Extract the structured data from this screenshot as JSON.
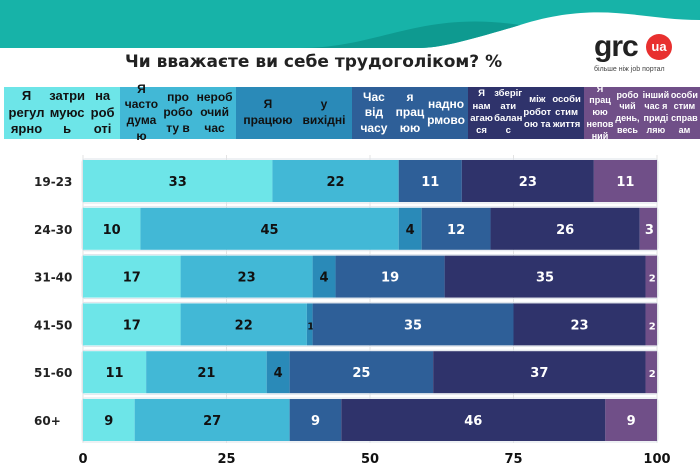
{
  "title": "Чи вважаєте ви себе трудоголіком? %",
  "logo": {
    "text": "grc",
    "badge": "ua",
    "tagline": "більше ніж job портал"
  },
  "colors": {
    "wave_light": "#17b3a8",
    "wave_dark": "#0e9a90",
    "text_dark": "#111111",
    "text_light": "#ffffff"
  },
  "chart_data": {
    "type": "bar",
    "orientation": "horizontal",
    "stacked": true,
    "title": "Чи вважаєте ви себе трудоголіком? %",
    "categories": [
      "19-23",
      "24-30",
      "31-40",
      "41-50",
      "51-60",
      "60+"
    ],
    "xlim": [
      0,
      100
    ],
    "xticks": [
      "0",
      "25",
      "50",
      "75",
      "100"
    ],
    "grid": true,
    "legend": "top",
    "series": [
      {
        "name": "Я регулярно затримуюсь на роботі",
        "color": "#6de5e8",
        "text_color": "#111111",
        "values": [
          33,
          10,
          17,
          17,
          11,
          9
        ]
      },
      {
        "name": "Я часто думаю про роботу в неробочий час",
        "color": "#42b8d6",
        "text_color": "#111111",
        "values": [
          22,
          45,
          23,
          22,
          21,
          27
        ]
      },
      {
        "name": "Я працюю у вихідні",
        "color": "#2a8ab8",
        "text_color": "#111111",
        "values": [
          0,
          4,
          4,
          1,
          4,
          0
        ]
      },
      {
        "name": "Час від часу я працюю наднормово",
        "color": "#2e5f98",
        "text_color": "#ffffff",
        "values": [
          11,
          12,
          19,
          35,
          25,
          9
        ]
      },
      {
        "name": "Я намагаюся зберігати баланс між роботою та особистим життя",
        "color": "#2f336b",
        "text_color": "#ffffff",
        "values": [
          23,
          26,
          35,
          23,
          37,
          46
        ]
      },
      {
        "name": "Я працюю неповний робочий день, весь інший час я приділяю особистим справам",
        "color": "#704f88",
        "text_color": "#ffffff",
        "values": [
          11,
          3,
          2,
          2,
          2,
          9
        ]
      }
    ]
  },
  "legend_lines": [
    [
      "Я регулярно",
      "затримуюсь",
      "на роботі"
    ],
    [
      "Я часто думаю",
      "про роботу в",
      "неробочий час"
    ],
    [
      "Я працюю",
      "у вихідні"
    ],
    [
      "Час від часу",
      "я працюю",
      "наднормово"
    ],
    [
      "Я намагаюся",
      "зберігати баланс",
      "між роботою та",
      "особистим життя"
    ],
    [
      "Я працюю неповний",
      "робочий день, весь",
      "інший час я приділяю",
      "особистим справам"
    ]
  ]
}
